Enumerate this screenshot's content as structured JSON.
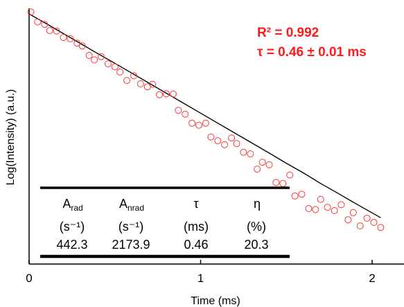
{
  "chart_data": {
    "type": "scatter",
    "title": "",
    "xlabel": "Time (ms)",
    "ylabel": "Log(Intensity) (a.u.)",
    "xlim": [
      0,
      2.2
    ],
    "ylim": [
      0,
      1
    ],
    "x_ticks": [
      "0",
      "1",
      "2"
    ],
    "y_tick_labels": "none",
    "grid": false,
    "legend": "none",
    "marker": "open-circle",
    "marker_color": "#ff3333",
    "fit_color": "#000000",
    "series": [
      {
        "x": [
          0.01,
          0.05,
          0.09,
          0.12,
          0.16,
          0.2,
          0.24,
          0.28,
          0.31,
          0.35,
          0.38,
          0.42,
          0.46,
          0.5,
          0.53,
          0.57,
          0.61,
          0.65,
          0.69,
          0.72,
          0.76,
          0.8,
          0.84,
          0.87,
          0.91,
          0.95,
          0.99,
          1.03,
          1.06,
          1.1,
          1.14,
          1.18,
          1.21,
          1.25,
          1.29,
          1.33,
          1.36,
          1.4,
          1.44,
          1.48,
          1.52,
          1.55,
          1.59,
          1.63,
          1.67,
          1.7,
          1.74,
          1.78,
          1.82,
          1.86,
          1.89,
          1.93,
          1.97,
          2.01,
          2.05
        ],
        "y": [
          0.986,
          0.947,
          0.937,
          0.913,
          0.911,
          0.886,
          0.881,
          0.864,
          0.853,
          0.816,
          0.798,
          0.811,
          0.783,
          0.771,
          0.751,
          0.718,
          0.736,
          0.705,
          0.693,
          0.703,
          0.662,
          0.666,
          0.665,
          0.601,
          0.586,
          0.551,
          0.543,
          0.551,
          0.497,
          0.482,
          0.467,
          0.493,
          0.471,
          0.437,
          0.431,
          0.371,
          0.398,
          0.388,
          0.319,
          0.315,
          0.348,
          0.266,
          0.273,
          0.217,
          0.213,
          0.253,
          0.222,
          0.209,
          0.232,
          0.173,
          0.201,
          0.149,
          0.179,
          0.163,
          0.143
        ]
      }
    ],
    "fit": {
      "x": [
        0,
        0.1,
        0.2,
        0.3,
        0.4,
        0.5,
        0.6,
        0.7,
        0.8,
        0.9,
        1.0,
        1.1,
        1.2,
        1.3,
        1.4,
        1.5,
        1.6,
        1.7,
        1.8,
        1.9,
        2.0,
        2.05
      ],
      "y": [
        0.978,
        0.94,
        0.901,
        0.862,
        0.823,
        0.785,
        0.746,
        0.707,
        0.668,
        0.629,
        0.59,
        0.551,
        0.512,
        0.473,
        0.434,
        0.394,
        0.356,
        0.315,
        0.277,
        0.238,
        0.2,
        0.181
      ]
    },
    "annotations": [
      "R² = 0.992",
      "τ = 0.46 ± 0.01 ms"
    ],
    "table": {
      "headers": [
        {
          "main": "A",
          "sub": "rad"
        },
        {
          "main": "A",
          "sub": "nrad"
        },
        {
          "main": "τ",
          "sub": ""
        },
        {
          "main": "η",
          "sub": ""
        }
      ],
      "units": [
        "(s⁻¹)",
        "(s⁻¹)",
        "(ms)",
        "(%)"
      ],
      "values": [
        "442.3",
        "2173.9",
        "0.46",
        "20.3"
      ]
    }
  }
}
